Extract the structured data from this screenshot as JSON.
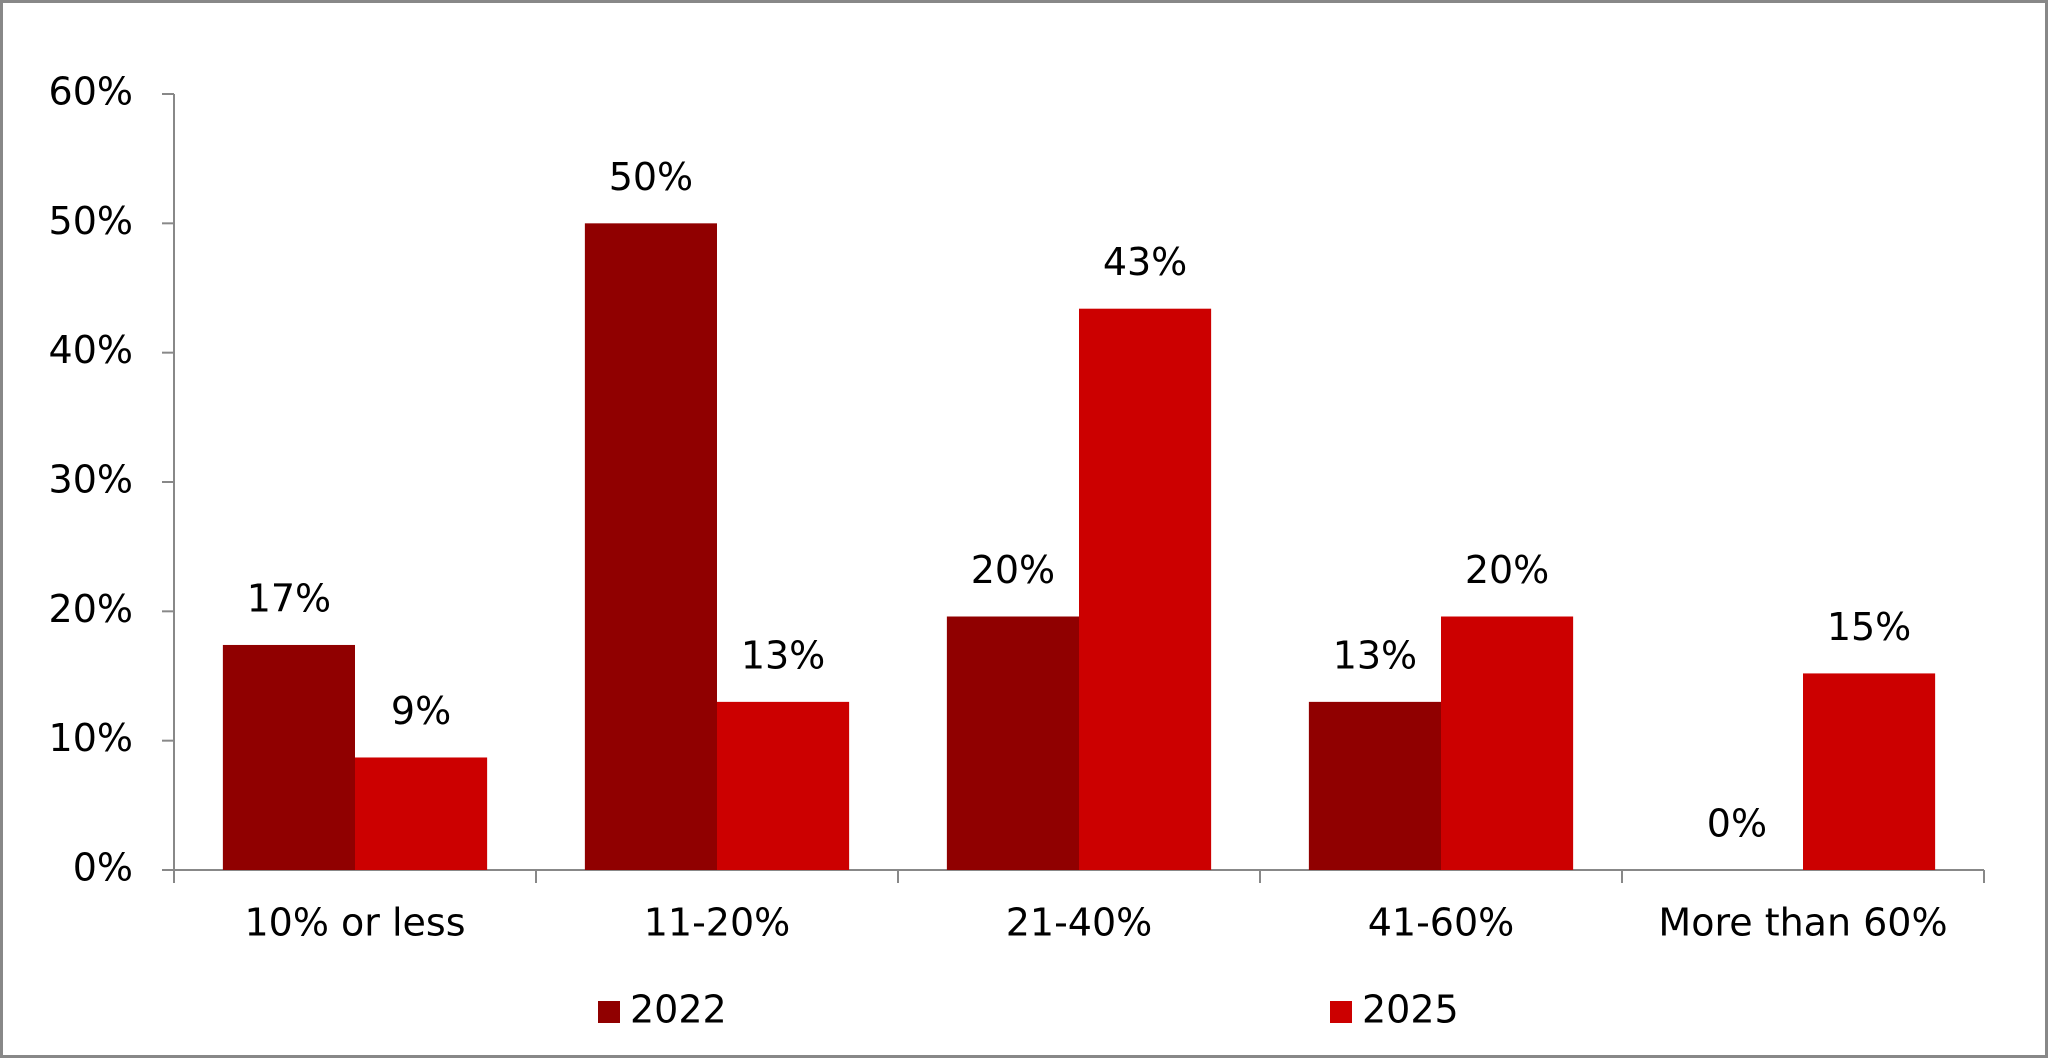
{
  "chart_data": {
    "type": "bar",
    "categories": [
      "10% or less",
      "11-20%",
      "21-40%",
      "41-60%",
      "More than 60%"
    ],
    "series": [
      {
        "name": "2022",
        "color": "#900000",
        "values": [
          17.4,
          50,
          19.6,
          13,
          0
        ],
        "value_labels": [
          "17%",
          "50%",
          "20%",
          "13%",
          "0%"
        ]
      },
      {
        "name": "2025",
        "color": "#cc0000",
        "values": [
          8.7,
          13,
          43.4,
          19.6,
          15.2
        ],
        "value_labels": [
          "9%",
          "13%",
          "43%",
          "20%",
          "15%"
        ]
      }
    ],
    "ylim": [
      0,
      60
    ],
    "yticks": [
      {
        "value": 0,
        "label": "0%"
      },
      {
        "value": 10,
        "label": "10%"
      },
      {
        "value": 20,
        "label": "20%"
      },
      {
        "value": 30,
        "label": "30%"
      },
      {
        "value": 40,
        "label": "40%"
      },
      {
        "value": 50,
        "label": "50%"
      },
      {
        "value": 60,
        "label": "60%"
      }
    ],
    "grid": false,
    "legend": "bottom"
  }
}
